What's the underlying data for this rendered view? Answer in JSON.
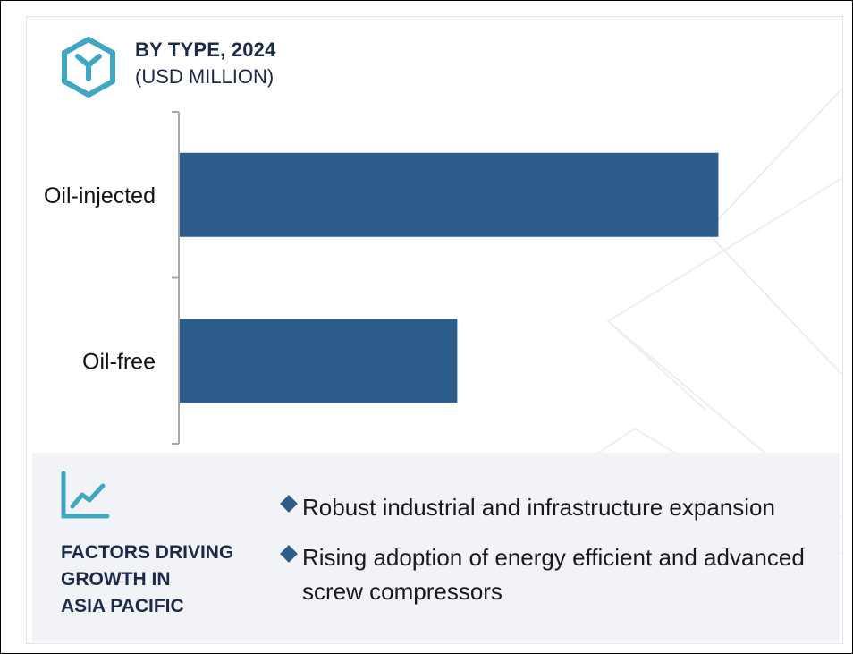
{
  "header": {
    "title": "BY TYPE, 2024",
    "subtitle": "(USD MILLION)",
    "icon": "hexagon-y-icon"
  },
  "chart_data": {
    "type": "bar",
    "orientation": "horizontal",
    "title": "BY TYPE, 2024",
    "subtitle": "(USD MILLION)",
    "categories": [
      "Oil-injected",
      "Oil-free"
    ],
    "values": [
      100,
      51.6
    ],
    "value_note": "relative values, no numeric axis shown",
    "xlim": [
      0,
      116
    ],
    "grid": false,
    "legend": "none",
    "bar_color": "#2c5d8b"
  },
  "factors": {
    "icon": "trend-chart-icon",
    "title_lines": [
      "FACTORS DRIVING",
      "GROWTH IN",
      "ASIA PACIFIC"
    ],
    "items": [
      "Robust industrial and infrastructure expansion",
      "Rising adoption of energy efficient and advanced screw compressors"
    ]
  },
  "colors": {
    "accent_teal": "#3fa7c2",
    "bar": "#2c5d8b",
    "navy_text": "#1c2a4a",
    "panel_bg": "#f1f3f7"
  }
}
